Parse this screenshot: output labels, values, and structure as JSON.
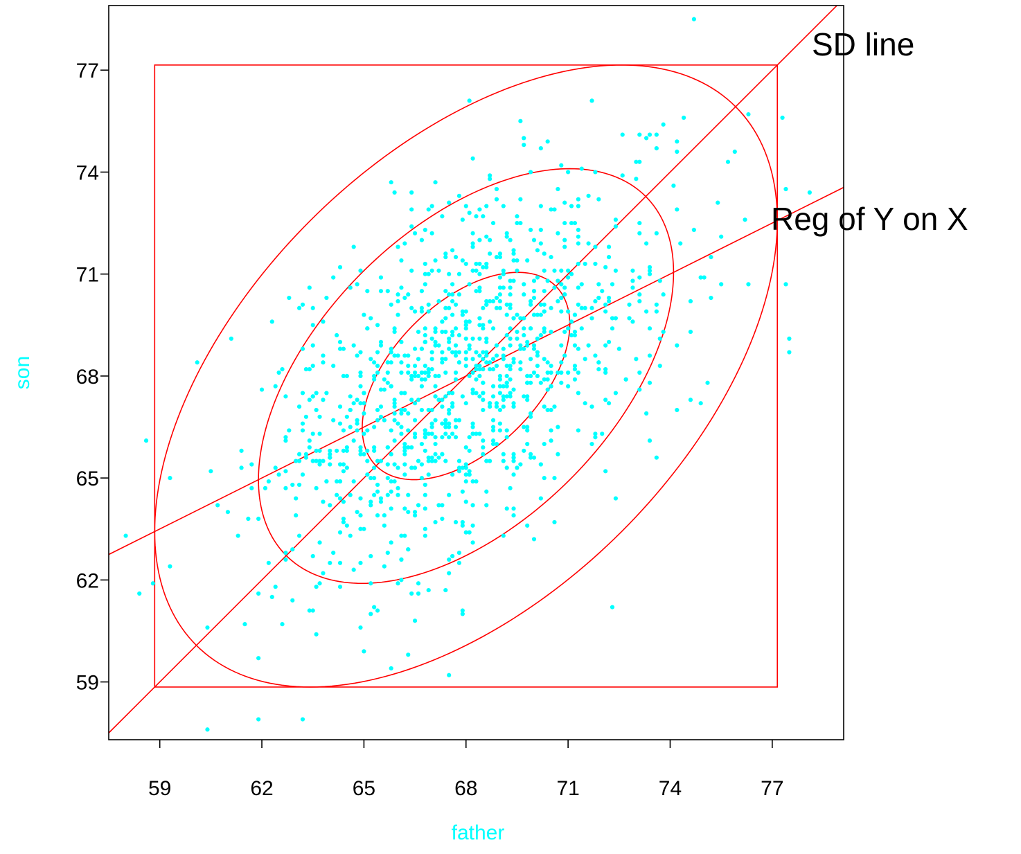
{
  "chart_data": {
    "type": "scatter",
    "title": "",
    "xlabel": "father",
    "ylabel": "son",
    "xlim": [
      57.5,
      79.1
    ],
    "ylim": [
      57.3,
      78.9
    ],
    "x_ticks": [
      59,
      62,
      65,
      68,
      71,
      74,
      77
    ],
    "y_ticks": [
      59,
      62,
      65,
      68,
      71,
      74,
      77
    ],
    "x_tick_labels": [
      "59",
      "62",
      "65",
      "68",
      "71",
      "74",
      "77"
    ],
    "y_tick_labels": [
      "59",
      "62",
      "65",
      "68",
      "71",
      "74",
      "77"
    ],
    "grid": false,
    "colors": {
      "points": "#00ffff",
      "overlay": "#ff0000",
      "axes": "#000000",
      "axis_title": "#00ffff"
    },
    "stats": {
      "mean_x": 68.0,
      "mean_y": 68.0,
      "sd_x": 3.05,
      "sd_y": 3.05,
      "r": 0.5
    },
    "n_points": 1078,
    "point_seed": 7,
    "ellipse_sd_multipliers": [
      1,
      2,
      3
    ],
    "annotations": [
      {
        "name": "sd-line-label",
        "text": "SD line"
      },
      {
        "name": "regression-label",
        "text": "Reg of Y on X"
      }
    ],
    "outlier_points": [
      {
        "x": 74.7,
        "y": 78.5
      },
      {
        "x": 58.0,
        "y": 63.3
      },
      {
        "x": 58.6,
        "y": 66.1
      },
      {
        "x": 60.4,
        "y": 57.6
      },
      {
        "x": 61.9,
        "y": 57.9
      },
      {
        "x": 63.2,
        "y": 57.9
      },
      {
        "x": 78.1,
        "y": 73.4
      },
      {
        "x": 77.3,
        "y": 75.6
      },
      {
        "x": 72.3,
        "y": 61.2
      },
      {
        "x": 58.4,
        "y": 61.6
      }
    ]
  }
}
